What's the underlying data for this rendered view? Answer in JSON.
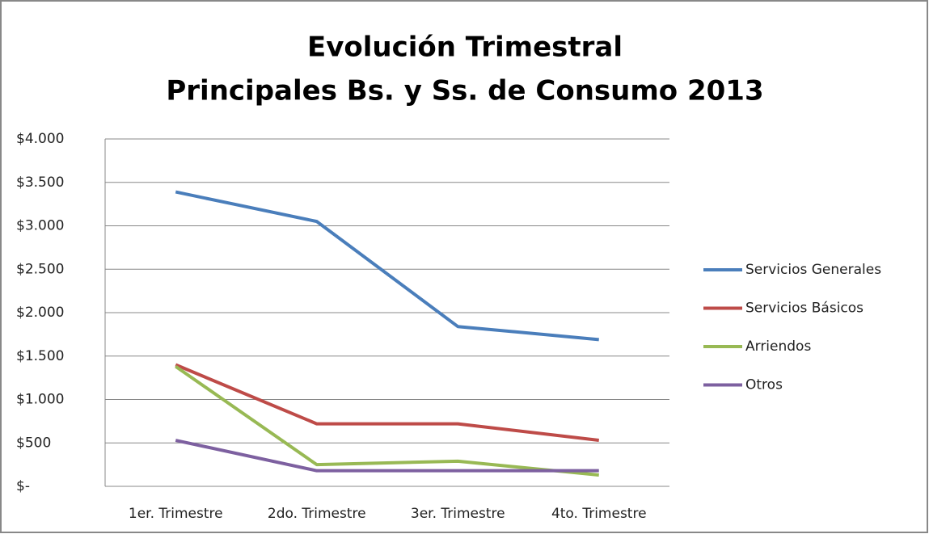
{
  "chart_data": {
    "type": "line",
    "title": [
      "Evolución Trimestral",
      "Principales Bs. y Ss. de Consumo 2013"
    ],
    "categories": [
      "1er. Trimestre",
      "2do. Trimestre",
      "3er. Trimestre",
      "4to. Trimestre"
    ],
    "series": [
      {
        "name": "Servicios Generales",
        "color": "#4a7ebb",
        "values": [
          3390,
          3050,
          1840,
          1690
        ]
      },
      {
        "name": "Servicios Básicos",
        "color": "#be4b48",
        "values": [
          1400,
          720,
          720,
          530
        ]
      },
      {
        "name": "Arriendos",
        "color": "#98b954",
        "values": [
          1380,
          250,
          290,
          130
        ]
      },
      {
        "name": "Otros",
        "color": "#7d60a0",
        "values": [
          530,
          180,
          180,
          180
        ]
      }
    ],
    "ylim": [
      0,
      4000
    ],
    "yticks": [
      {
        "value": 0,
        "label": "$-"
      },
      {
        "value": 500,
        "label": "$500"
      },
      {
        "value": 1000,
        "label": "$1.000"
      },
      {
        "value": 1500,
        "label": "$1.500"
      },
      {
        "value": 2000,
        "label": "$2.000"
      },
      {
        "value": 2500,
        "label": "$2.500"
      },
      {
        "value": 3000,
        "label": "$3.000"
      },
      {
        "value": 3500,
        "label": "$3.500"
      },
      {
        "value": 4000,
        "label": "$4.000"
      }
    ],
    "grid": true,
    "legend": "right"
  }
}
